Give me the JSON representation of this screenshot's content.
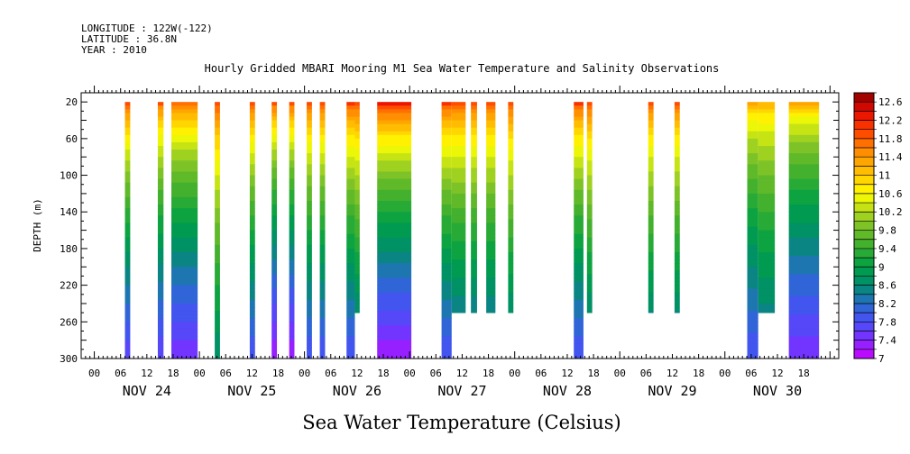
{
  "header": {
    "longitude": "LONGITUDE : 122W(-122)",
    "latitude": "LATITUDE : 36.8N",
    "year": "YEAR : 2010"
  },
  "chart_data": {
    "type": "heatmap",
    "title": "Hourly Gridded MBARI Mooring M1 Sea Water Temperature and Salinity Observations",
    "xlabel": "Sea Water Temperature (Celsius)",
    "ylabel": "DEPTH (m)",
    "x_unit": "hours since NOV 24 00:00",
    "xlim": [
      -3,
      170
    ],
    "ylim": [
      300,
      10
    ],
    "y_ticks": [
      20,
      60,
      100,
      140,
      180,
      220,
      260,
      300
    ],
    "x_hour_ticks": [
      {
        "h": 0,
        "label": "00"
      },
      {
        "h": 6,
        "label": "06"
      },
      {
        "h": 12,
        "label": "12"
      },
      {
        "h": 18,
        "label": "18"
      },
      {
        "h": 24,
        "label": "00"
      },
      {
        "h": 30,
        "label": "06"
      },
      {
        "h": 36,
        "label": "12"
      },
      {
        "h": 42,
        "label": "18"
      },
      {
        "h": 48,
        "label": "00"
      },
      {
        "h": 54,
        "label": "06"
      },
      {
        "h": 60,
        "label": "12"
      },
      {
        "h": 66,
        "label": "18"
      },
      {
        "h": 72,
        "label": "00"
      },
      {
        "h": 78,
        "label": "06"
      },
      {
        "h": 84,
        "label": "12"
      },
      {
        "h": 90,
        "label": "18"
      },
      {
        "h": 96,
        "label": "00"
      },
      {
        "h": 102,
        "label": "06"
      },
      {
        "h": 108,
        "label": "12"
      },
      {
        "h": 114,
        "label": "18"
      },
      {
        "h": 120,
        "label": "00"
      },
      {
        "h": 126,
        "label": "06"
      },
      {
        "h": 132,
        "label": "12"
      },
      {
        "h": 138,
        "label": "18"
      },
      {
        "h": 144,
        "label": "00"
      },
      {
        "h": 150,
        "label": "06"
      },
      {
        "h": 156,
        "label": "12"
      },
      {
        "h": 162,
        "label": "18"
      }
    ],
    "x_day_labels": [
      {
        "h": 12,
        "label": "NOV 24"
      },
      {
        "h": 36,
        "label": "NOV 25"
      },
      {
        "h": 60,
        "label": "NOV 26"
      },
      {
        "h": 84,
        "label": "NOV 27"
      },
      {
        "h": 108,
        "label": "NOV 28"
      },
      {
        "h": 132,
        "label": "NOV 29"
      },
      {
        "h": 156,
        "label": "NOV 30"
      }
    ],
    "colorbar": {
      "min": 7,
      "max": 12.8,
      "step": 0.2,
      "tick_labels": [
        "12.6",
        "12.2",
        "11.8",
        "11.4",
        "11",
        "10.6",
        "10.2",
        "9.8",
        "9.4",
        "9",
        "8.6",
        "8.2",
        "7.8",
        "7.4",
        "7"
      ]
    },
    "blocks": [
      {
        "h0": 7.0,
        "h1": 8.2,
        "surf": 12.3,
        "deep": 7.6,
        "bottom": 300
      },
      {
        "h0": 14.5,
        "h1": 15.8,
        "surf": 12.1,
        "deep": 7.6,
        "bottom": 300
      },
      {
        "h0": 17.6,
        "h1": 23.6,
        "surf": 12.1,
        "deep": 7.4,
        "bottom": 300
      },
      {
        "h0": 27.5,
        "h1": 28.7,
        "surf": 12.2,
        "deep": 8.6,
        "bottom": 300
      },
      {
        "h0": 35.5,
        "h1": 36.7,
        "surf": 12.2,
        "deep": 7.8,
        "bottom": 300
      },
      {
        "h0": 40.5,
        "h1": 41.7,
        "surf": 12.2,
        "deep": 7.2,
        "bottom": 300
      },
      {
        "h0": 44.5,
        "h1": 45.7,
        "surf": 12.2,
        "deep": 7.2,
        "bottom": 300
      },
      {
        "h0": 48.5,
        "h1": 49.7,
        "surf": 12.2,
        "deep": 7.8,
        "bottom": 300
      },
      {
        "h0": 51.5,
        "h1": 52.7,
        "surf": 12.2,
        "deep": 7.8,
        "bottom": 300
      },
      {
        "h0": 57.6,
        "h1": 59.5,
        "surf": 12.3,
        "deep": 7.8,
        "bottom": 300
      },
      {
        "h0": 59.5,
        "h1": 60.6,
        "surf": 12.2,
        "deep": 8.2,
        "bottom": 250
      },
      {
        "h0": 64.6,
        "h1": 72.4,
        "surf": 12.6,
        "deep": 7.2,
        "bottom": 300
      },
      {
        "h0": 79.3,
        "h1": 81.6,
        "surf": 12.3,
        "deep": 7.8,
        "bottom": 300
      },
      {
        "h0": 81.6,
        "h1": 84.8,
        "surf": 12.2,
        "deep": 8.0,
        "bottom": 250
      },
      {
        "h0": 86.0,
        "h1": 87.4,
        "surf": 12.2,
        "deep": 8.0,
        "bottom": 250
      },
      {
        "h0": 89.5,
        "h1": 91.6,
        "surf": 12.2,
        "deep": 8.0,
        "bottom": 250
      },
      {
        "h0": 94.5,
        "h1": 95.7,
        "surf": 12.2,
        "deep": 8.2,
        "bottom": 250
      },
      {
        "h0": 109.5,
        "h1": 111.7,
        "surf": 12.3,
        "deep": 7.8,
        "bottom": 300
      },
      {
        "h0": 112.5,
        "h1": 113.7,
        "surf": 12.2,
        "deep": 8.2,
        "bottom": 250
      },
      {
        "h0": 126.5,
        "h1": 127.7,
        "surf": 12.1,
        "deep": 8.2,
        "bottom": 250
      },
      {
        "h0": 132.5,
        "h1": 133.7,
        "surf": 12.1,
        "deep": 8.2,
        "bottom": 250
      },
      {
        "h0": 149.1,
        "h1": 151.6,
        "surf": 11.5,
        "deep": 7.8,
        "bottom": 300
      },
      {
        "h0": 151.6,
        "h1": 155.4,
        "surf": 11.4,
        "deep": 8.2,
        "bottom": 250
      },
      {
        "h0": 158.6,
        "h1": 165.5,
        "surf": 11.5,
        "deep": 7.4,
        "bottom": 300
      }
    ]
  }
}
